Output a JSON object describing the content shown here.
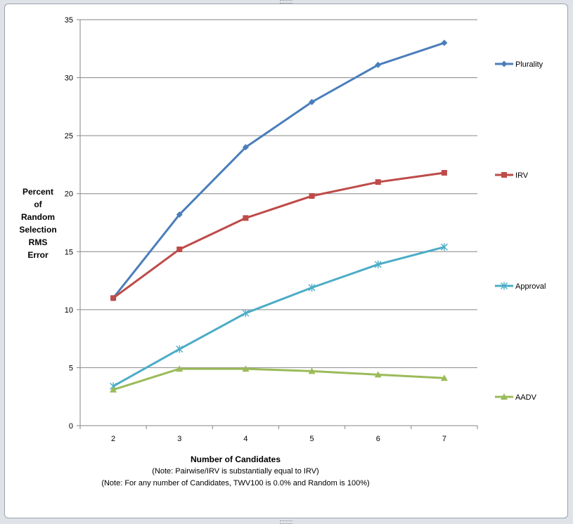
{
  "chart_data": {
    "type": "line",
    "title": "",
    "xlabel": "Number of Candidates",
    "ylabel_lines": [
      "Percent",
      "of",
      "Random",
      "Selection",
      "RMS",
      "Error"
    ],
    "x": [
      2,
      3,
      4,
      5,
      6,
      7
    ],
    "ylim": [
      0,
      35
    ],
    "yticks": [
      0,
      5,
      10,
      15,
      20,
      25,
      30,
      35
    ],
    "grid": true,
    "legend": "right",
    "notes": [
      "(Note:  Pairwise/IRV is substantially equal to IRV)",
      "(Note:  For any number of Candidates, TWV100 is 0.0% and Random is 100%)"
    ],
    "series": [
      {
        "name": "Plurality",
        "color": "#4a7ebb",
        "marker": "diamond",
        "values": [
          11.0,
          18.2,
          24.0,
          27.9,
          31.1,
          33.0
        ]
      },
      {
        "name": "IRV",
        "color": "#be4b48",
        "marker": "square",
        "values": [
          11.0,
          15.2,
          17.9,
          19.8,
          21.0,
          21.8
        ]
      },
      {
        "name": "Approval",
        "color": "#4bacc6",
        "marker": "star",
        "values": [
          3.4,
          6.6,
          9.7,
          11.9,
          13.9,
          15.4
        ]
      },
      {
        "name": "AADV",
        "color": "#9bbb59",
        "marker": "triangle",
        "values": [
          3.1,
          4.9,
          4.9,
          4.7,
          4.4,
          4.1
        ]
      }
    ]
  }
}
